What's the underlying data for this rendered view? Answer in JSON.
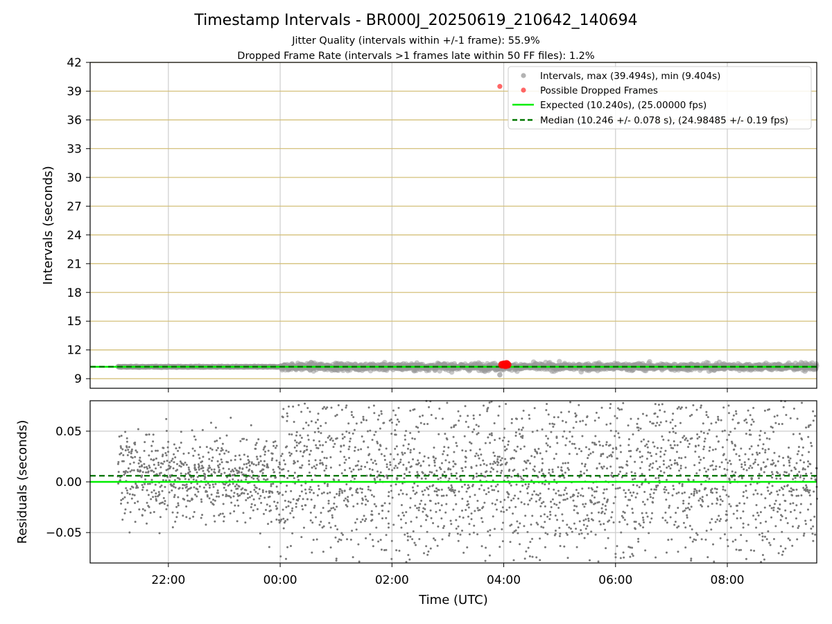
{
  "figure": {
    "title": "Timestamp Intervals - BR000J_20250619_210642_140694",
    "subtitle_1": "Jitter Quality (intervals within +/-1 frame): 55.9%",
    "subtitle_2": "Dropped Frame Rate (intervals >1 frames late within 50 FF files): 1.2%"
  },
  "colors": {
    "intervals": "#999999",
    "dropped": "#ff0000",
    "expected": "#00ee00",
    "median": "#007700",
    "hgrid_top": "#d4c07a",
    "grid": "#cccccc",
    "residual_points": "#777777"
  },
  "chart_data": [
    {
      "type": "scatter",
      "title": "",
      "xlabel": "",
      "ylabel": "Intervals (seconds)",
      "xlim_hours": [
        20.6,
        33.6
      ],
      "ylim": [
        8.0,
        42.0
      ],
      "yticks": [
        9,
        12,
        15,
        18,
        21,
        24,
        27,
        30,
        33,
        36,
        39,
        42
      ],
      "ytick_labels": [
        "9",
        "12",
        "15",
        "18",
        "21",
        "24",
        "27",
        "30",
        "33",
        "36",
        "39",
        "42"
      ],
      "xtick_hours": [
        22,
        24,
        26,
        28,
        30,
        32
      ],
      "grid": "horizontal lines at y ticks, vertical lines at x ticks",
      "legend_position": "top-right",
      "legend": [
        "Intervals, max (39.494s), min (9.404s)",
        "Possible Dropped Frames",
        "Expected (10.240s), (25.00000 fps)",
        "Median (10.246 +/- 0.078 s), (24.98485 +/- 0.19 fps)"
      ],
      "series": [
        {
          "name": "Intervals, max (39.494s), min (9.404s)",
          "kind": "scatter band",
          "x_start_hours": 21.1,
          "x_end_hours": 33.6,
          "center": 10.24,
          "spread_before_midnight": 0.05,
          "spread_after_midnight": 0.35,
          "outliers": [
            {
              "x_hour": 27.93,
              "y": 9.404
            }
          ]
        },
        {
          "name": "Possible Dropped Frames",
          "kind": "scatter",
          "points": [
            {
              "x_hour": 27.93,
              "y": 39.494
            },
            {
              "x_hour": 27.97,
              "y": 10.45
            },
            {
              "x_hour": 28.0,
              "y": 10.5
            },
            {
              "x_hour": 28.03,
              "y": 10.4
            },
            {
              "x_hour": 28.05,
              "y": 10.55
            },
            {
              "x_hour": 28.07,
              "y": 10.45
            }
          ]
        },
        {
          "name": "Expected (10.240s), (25.00000 fps)",
          "kind": "hline",
          "y": 10.24
        },
        {
          "name": "Median (10.246 +/- 0.078 s), (24.98485 +/- 0.19 fps)",
          "kind": "hline dashed",
          "y": 10.246
        }
      ]
    },
    {
      "type": "scatter",
      "title": "",
      "xlabel": "Time (UTC)",
      "ylabel": "Residuals (seconds)",
      "xlim_hours": [
        20.6,
        33.6
      ],
      "ylim": [
        -0.08,
        0.08
      ],
      "yticks": [
        -0.05,
        0.0,
        0.05
      ],
      "ytick_labels": [
        "−0.05",
        "0.00",
        "0.05"
      ],
      "xtick_hours": [
        22,
        24,
        26,
        28,
        30,
        32
      ],
      "xtick_labels": [
        "22:00",
        "00:00",
        "02:00",
        "04:00",
        "06:00",
        "08:00"
      ],
      "grid": true,
      "series": [
        {
          "kind": "residual scatter",
          "x_start_hours": 21.1,
          "x_end_hours": 33.6,
          "std_before_midnight": 0.022,
          "std_after_midnight": 0.045,
          "clipped_to_ylim": true
        },
        {
          "kind": "hline",
          "y": 0.0,
          "role": "expected"
        },
        {
          "kind": "hline dashed",
          "y": 0.006,
          "role": "median"
        }
      ]
    }
  ]
}
